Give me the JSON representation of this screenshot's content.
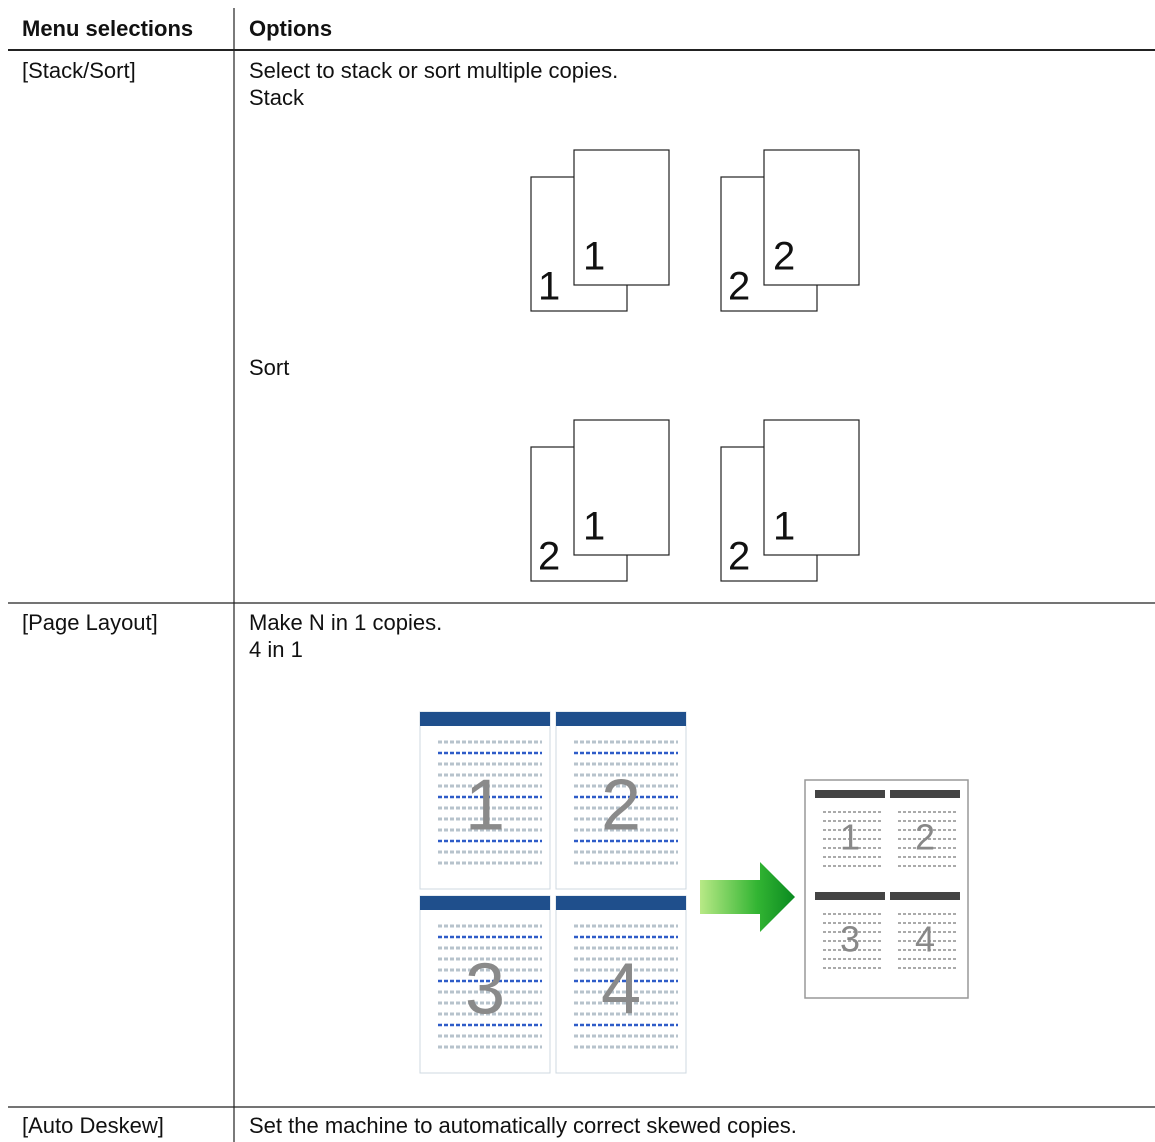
{
  "table": {
    "headers": [
      "Menu selections",
      "Options"
    ],
    "rows": [
      {
        "menu": "[Stack/Sort]",
        "description": "Select to stack or sort multiple copies.",
        "sections": [
          {
            "label": "Stack",
            "sets": [
              [
                "1",
                "1"
              ],
              [
                "2",
                "2"
              ]
            ]
          },
          {
            "label": "Sort",
            "sets": [
              [
                "2",
                "1"
              ],
              [
                "2",
                "1"
              ]
            ]
          }
        ]
      },
      {
        "menu": "[Page Layout]",
        "description": "Make N in 1 copies.",
        "sections": [
          {
            "label": "4 in 1",
            "pages": [
              "1",
              "2",
              "3",
              "4"
            ]
          }
        ]
      },
      {
        "menu": "[Auto Deskew]",
        "description": "Set the machine to automatically correct skewed copies."
      }
    ]
  }
}
